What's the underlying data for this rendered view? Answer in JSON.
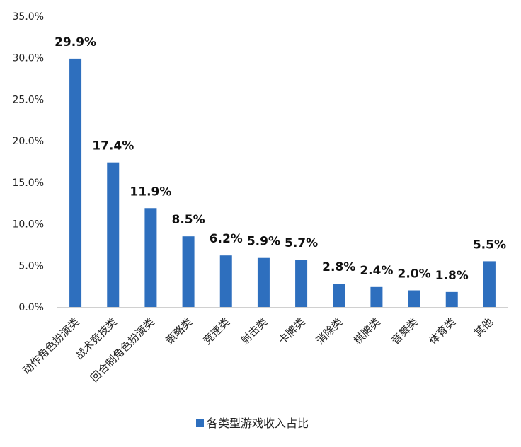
{
  "chart_data": {
    "type": "bar",
    "categories": [
      "动作角色扮演类",
      "战术竞技类",
      "回合制角色扮演类",
      "策略类",
      "竞速类",
      "射击类",
      "卡牌类",
      "消除类",
      "棋牌类",
      "音舞类",
      "体育类",
      "其他"
    ],
    "series": [
      {
        "name": "各类型游戏收入占比",
        "values": [
          29.9,
          17.4,
          11.9,
          8.5,
          6.2,
          5.9,
          5.7,
          2.8,
          2.4,
          2.0,
          1.8,
          5.5
        ],
        "labels": [
          "29.9%",
          "17.4%",
          "11.9%",
          "8.5%",
          "6.2%",
          "5.9%",
          "5.7%",
          "2.8%",
          "2.4%",
          "2.0%",
          "1.8%",
          "5.5%"
        ],
        "color": "#2e6fbe"
      }
    ],
    "yticks": [
      "0.0%",
      "5.0%",
      "10.0%",
      "15.0%",
      "20.0%",
      "25.0%",
      "30.0%",
      "35.0%"
    ],
    "ylim": [
      0,
      35
    ],
    "grid": false,
    "legend_position": "bottom"
  }
}
